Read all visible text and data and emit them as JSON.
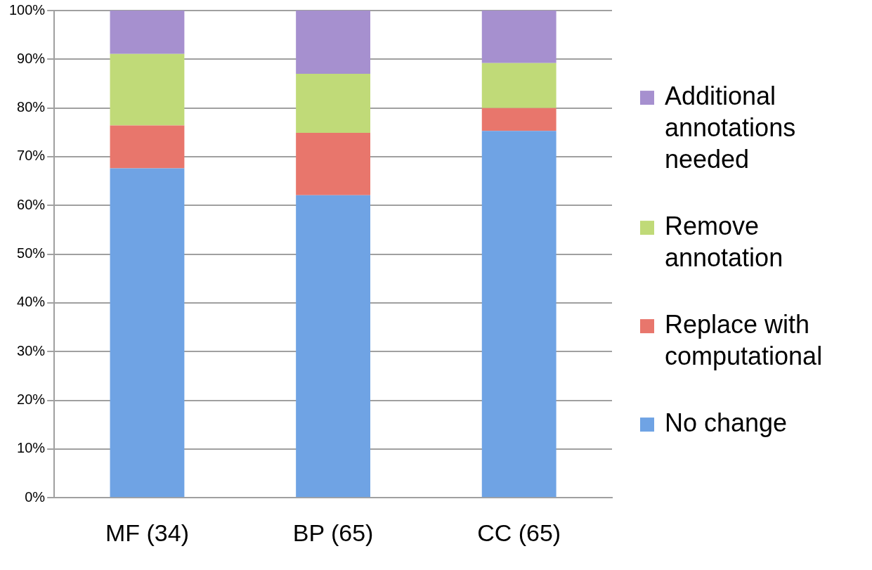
{
  "chart_data": {
    "type": "bar",
    "stacked": true,
    "categories": [
      "MF (34)",
      "BP (65)",
      "CC (65)"
    ],
    "series": [
      {
        "name": "No change",
        "color": "#6fa3e4",
        "values": [
          67.6,
          62.1,
          75.3
        ]
      },
      {
        "name": "Replace with computational",
        "color": "#e8766c",
        "values": [
          8.8,
          12.8,
          4.7
        ]
      },
      {
        "name": "Remove annotation",
        "color": "#c0da78",
        "values": [
          14.7,
          12.1,
          9.2
        ]
      },
      {
        "name": "Additional annotations needed",
        "color": "#a690cf",
        "values": [
          8.9,
          13.0,
          10.8
        ]
      }
    ],
    "ylim": [
      0,
      100
    ],
    "yticks": [
      {
        "value": 0,
        "label": "0%"
      },
      {
        "value": 10,
        "label": "10%"
      },
      {
        "value": 20,
        "label": "20%"
      },
      {
        "value": 30,
        "label": "30%"
      },
      {
        "value": 40,
        "label": "40%"
      },
      {
        "value": 50,
        "label": "50%"
      },
      {
        "value": 60,
        "label": "60%"
      },
      {
        "value": 70,
        "label": "70%"
      },
      {
        "value": 80,
        "label": "80%"
      },
      {
        "value": 90,
        "label": "90%"
      },
      {
        "value": 100,
        "label": "100%"
      }
    ],
    "grid": "y",
    "legend": "right"
  }
}
